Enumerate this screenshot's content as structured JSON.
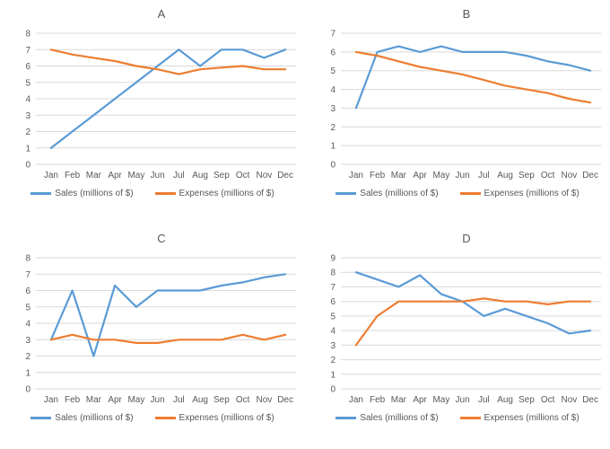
{
  "colors": {
    "sales": "#5B9BD5",
    "expenses": "#ED7D31",
    "grid": "#D9D9D9",
    "axis_text": "#595959",
    "title_text": "#595959",
    "background": "#FFFFFF"
  },
  "chart_data": [
    {
      "type": "line",
      "title": "A",
      "categories": [
        "Jan",
        "Feb",
        "Mar",
        "Apr",
        "May",
        "Jun",
        "Jul",
        "Aug",
        "Sep",
        "Oct",
        "Nov",
        "Dec"
      ],
      "xlabel": "",
      "ylabel": "",
      "ylim": [
        0,
        8
      ],
      "ytick_step": 1,
      "grid": true,
      "legend_position": "bottom",
      "series": [
        {
          "key": "sales",
          "name": "Sales (millions of $)",
          "color": "#5B9BD5",
          "values": [
            1,
            2,
            3,
            4,
            5,
            6,
            7,
            6,
            7,
            7,
            6.5,
            7
          ]
        },
        {
          "key": "expenses",
          "name": "Expenses (millions of $)",
          "color": "#ED7D31",
          "values": [
            7,
            6.7,
            6.5,
            6.3,
            6,
            5.8,
            5.5,
            5.8,
            5.9,
            6,
            5.8,
            5.8
          ]
        }
      ]
    },
    {
      "type": "line",
      "title": "B",
      "categories": [
        "Jan",
        "Feb",
        "Mar",
        "Apr",
        "May",
        "Jun",
        "Jul",
        "Aug",
        "Sep",
        "Oct",
        "Nov",
        "Dec"
      ],
      "xlabel": "",
      "ylabel": "",
      "ylim": [
        0,
        7
      ],
      "ytick_step": 1,
      "grid": true,
      "legend_position": "bottom",
      "series": [
        {
          "key": "sales",
          "name": "Sales (millions of $)",
          "color": "#5B9BD5",
          "values": [
            3,
            6,
            6.3,
            6,
            6.3,
            6,
            6,
            6,
            5.8,
            5.5,
            5.3,
            5
          ]
        },
        {
          "key": "expenses",
          "name": "Expenses (millions of $)",
          "color": "#ED7D31",
          "values": [
            6,
            5.8,
            5.5,
            5.2,
            5,
            4.8,
            4.5,
            4.2,
            4,
            3.8,
            3.5,
            3.3
          ]
        }
      ]
    },
    {
      "type": "line",
      "title": "C",
      "categories": [
        "Jan",
        "Feb",
        "Mar",
        "Apr",
        "May",
        "Jun",
        "Jul",
        "Aug",
        "Sep",
        "Oct",
        "Nov",
        "Dec"
      ],
      "xlabel": "",
      "ylabel": "",
      "ylim": [
        0,
        8
      ],
      "ytick_step": 1,
      "grid": true,
      "legend_position": "bottom",
      "series": [
        {
          "key": "sales",
          "name": "Sales (millions of $)",
          "color": "#5B9BD5",
          "values": [
            3,
            6,
            2,
            6.3,
            5,
            6,
            6,
            6,
            6.3,
            6.5,
            6.8,
            7
          ]
        },
        {
          "key": "expenses",
          "name": "Expenses (millions of $)",
          "color": "#ED7D31",
          "values": [
            3,
            3.3,
            3,
            3,
            2.8,
            2.8,
            3,
            3,
            3,
            3.3,
            3,
            3.3
          ]
        }
      ]
    },
    {
      "type": "line",
      "title": "D",
      "categories": [
        "Jan",
        "Feb",
        "Mar",
        "Apr",
        "May",
        "Jun",
        "Jul",
        "Aug",
        "Sep",
        "Oct",
        "Nov",
        "Dec"
      ],
      "xlabel": "",
      "ylabel": "",
      "ylim": [
        0,
        9
      ],
      "ytick_step": 1,
      "grid": true,
      "legend_position": "bottom",
      "series": [
        {
          "key": "sales",
          "name": "Sales (millions of $)",
          "color": "#5B9BD5",
          "values": [
            8,
            7.5,
            7,
            7.8,
            6.5,
            6,
            5,
            5.5,
            5,
            4.5,
            3.8,
            4
          ]
        },
        {
          "key": "expenses",
          "name": "Expenses (millions of $)",
          "color": "#ED7D31",
          "values": [
            3,
            5,
            6,
            6,
            6,
            6,
            6.2,
            6,
            6,
            5.8,
            6,
            6
          ]
        }
      ]
    }
  ]
}
